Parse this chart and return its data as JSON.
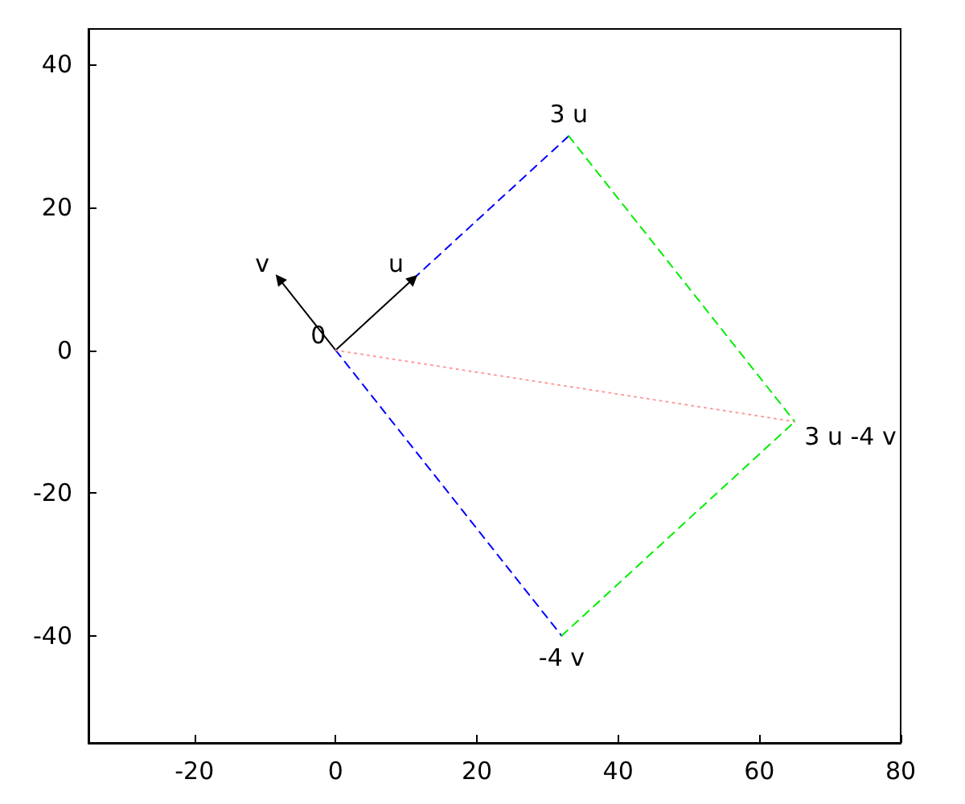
{
  "chart_data": {
    "type": "line",
    "series": [
      {
        "color": "#000000",
        "x": [
          0,
          11
        ],
        "values": [
          0,
          10
        ],
        "marker": "triangle",
        "line_style": "solid"
      },
      {
        "color": "#000000",
        "x": [
          0,
          -8
        ],
        "values": [
          0,
          10
        ],
        "marker": "triangle",
        "line_style": "solid"
      },
      {
        "color": "#0000ff",
        "x": [
          11,
          33
        ],
        "values": [
          10,
          30
        ],
        "line_style": "dashed"
      },
      {
        "color": "#0000ff",
        "x": [
          0,
          32
        ],
        "values": [
          0,
          -40
        ],
        "line_style": "dashed"
      },
      {
        "color": "#00ee00",
        "x": [
          33,
          65
        ],
        "values": [
          30,
          -10
        ],
        "line_style": "dashed"
      },
      {
        "color": "#00ee00",
        "x": [
          32,
          65
        ],
        "values": [
          -40,
          -10
        ],
        "line_style": "dashed"
      },
      {
        "color": "#ff9999",
        "x": [
          0,
          65
        ],
        "values": [
          0,
          -10
        ],
        "line_style": "dotted"
      }
    ],
    "annotations": [
      {
        "text": "0",
        "x": 0,
        "y": 0
      },
      {
        "text": "u",
        "x": 11,
        "y": 10
      },
      {
        "text": "v",
        "x": -8,
        "y": 10
      },
      {
        "text": "3 u",
        "x": 33,
        "y": 30
      },
      {
        "text": "-4 v",
        "x": 32,
        "y": -40
      },
      {
        "text": "3 u -4 v",
        "x": 65,
        "y": -10
      }
    ],
    "xlim": [
      -35,
      80
    ],
    "xticks": [
      -20,
      0,
      20,
      40,
      60,
      80
    ],
    "ylim": [
      -55,
      45
    ],
    "yticks": [
      -40,
      -20,
      0,
      20,
      40
    ],
    "grid": false
  }
}
